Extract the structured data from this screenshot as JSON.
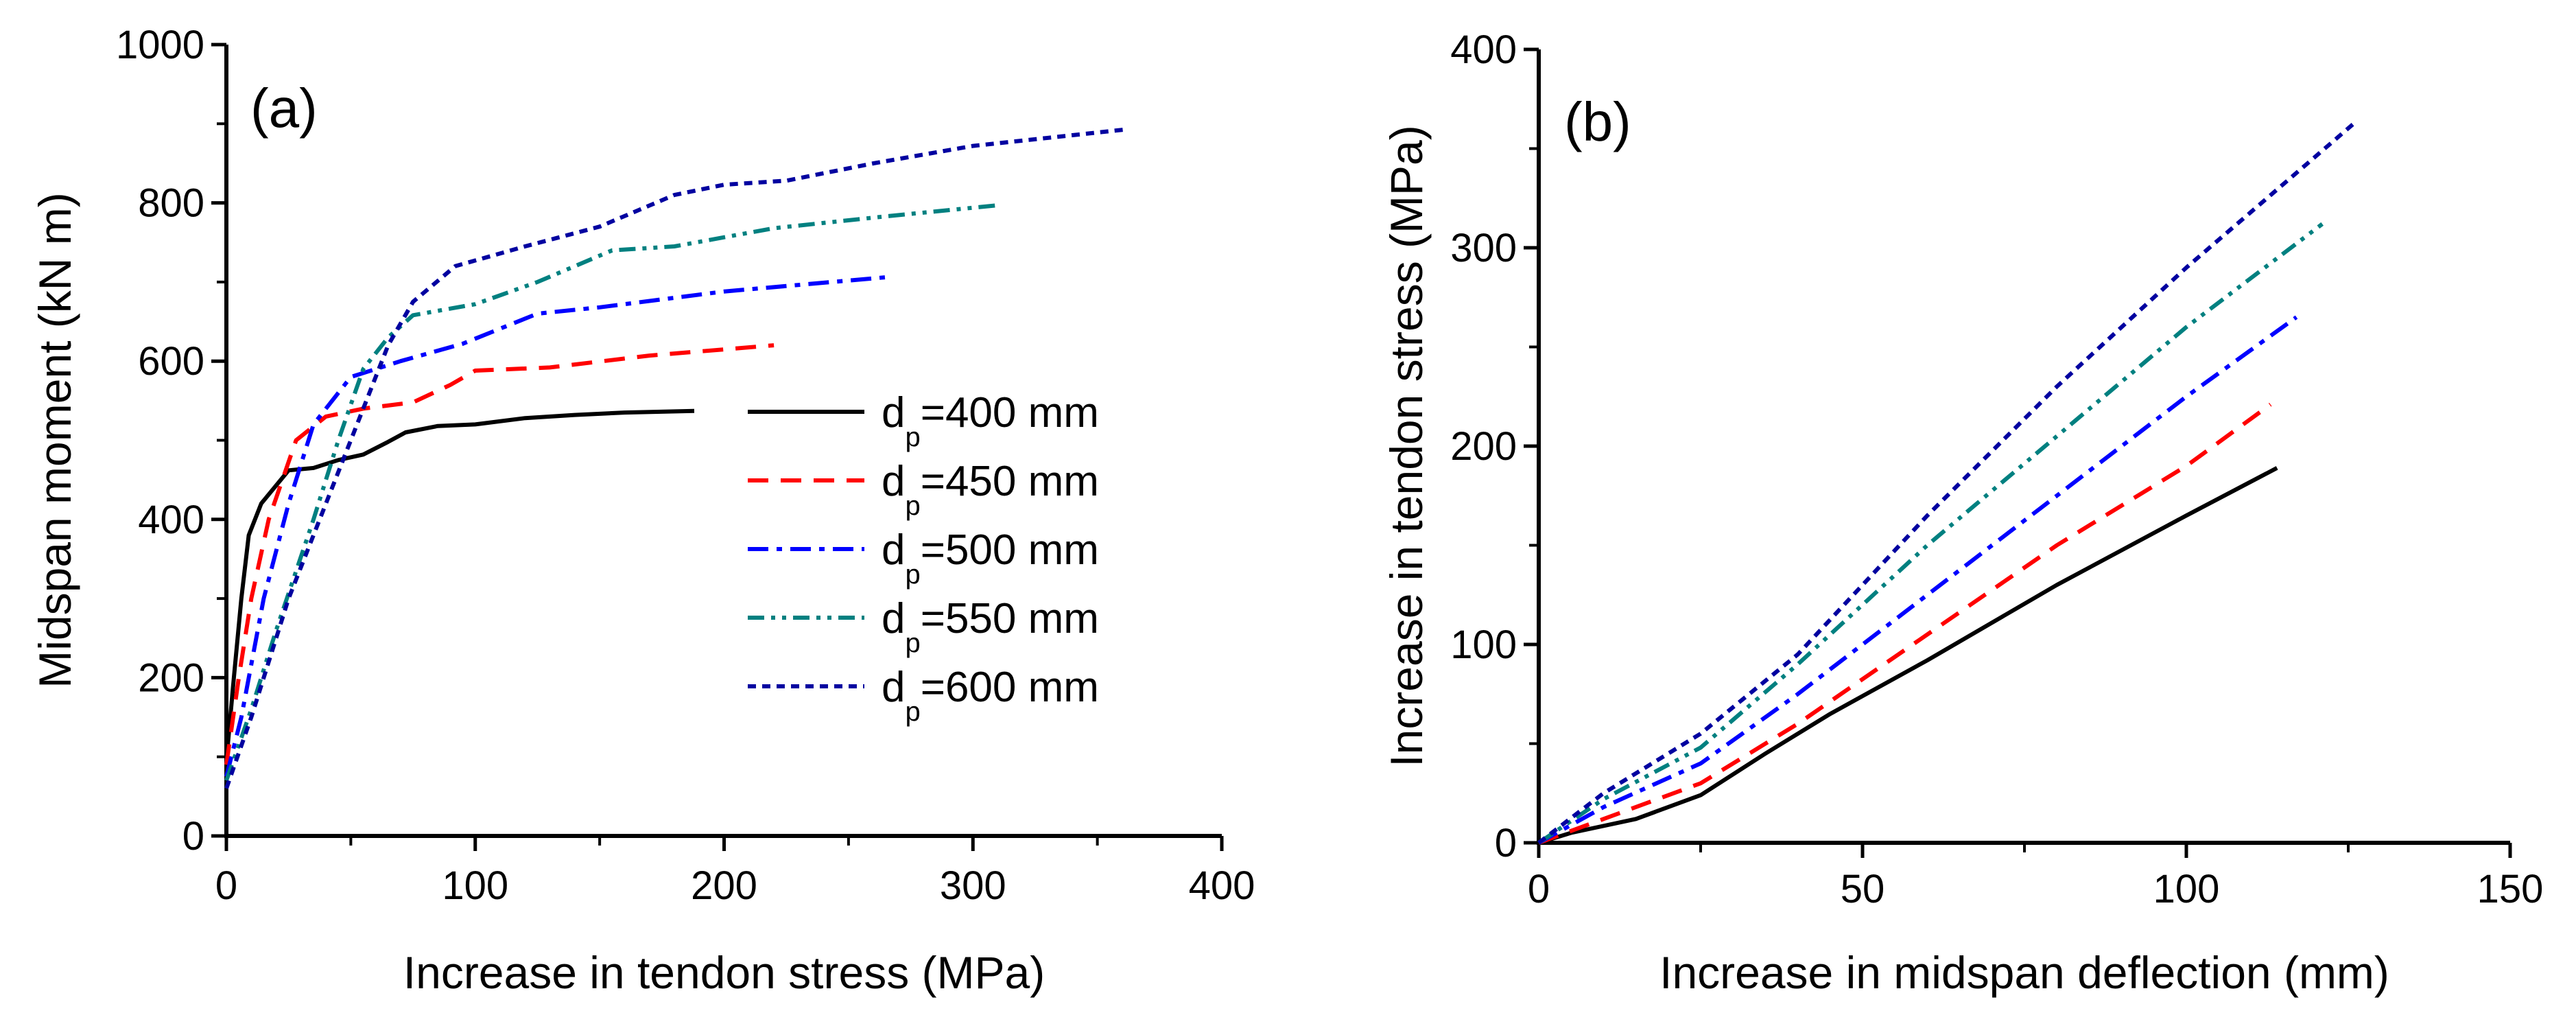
{
  "series_styles": [
    {
      "name": "dp=400 mm",
      "color": "#000000",
      "dash": "solid"
    },
    {
      "name": "dp=450 mm",
      "color": "#ff0000",
      "dash": "dash"
    },
    {
      "name": "dp=500 mm",
      "color": "#0000ff",
      "dash": "dash-dot"
    },
    {
      "name": "dp=550 mm",
      "color": "#008080",
      "dash": "dash-dot-dot"
    },
    {
      "name": "dp=600 mm",
      "color": "#0000a0",
      "dash": "short-dash"
    }
  ],
  "legend": [
    {
      "main": "d",
      "sub": "p",
      "rest": "=400 mm"
    },
    {
      "main": "d",
      "sub": "p",
      "rest": "=450 mm"
    },
    {
      "main": "d",
      "sub": "p",
      "rest": "=500 mm"
    },
    {
      "main": "d",
      "sub": "p",
      "rest": "=550 mm"
    },
    {
      "main": "d",
      "sub": "p",
      "rest": "=600 mm"
    }
  ],
  "chart_data": [
    {
      "type": "line",
      "panel_label": "(a)",
      "xlabel": "Increase in tendon stress (MPa)",
      "ylabel": "Midspan moment (kN m)",
      "xlim": [
        0,
        400
      ],
      "ylim": [
        0,
        1000
      ],
      "xticks": [
        0,
        100,
        200,
        300,
        400
      ],
      "yticks": [
        0,
        200,
        400,
        600,
        800,
        1000
      ],
      "legend_position": "center-right",
      "grid": false,
      "series": [
        {
          "name": "dp=400 mm",
          "points": [
            [
              0,
              95
            ],
            [
              3,
              200
            ],
            [
              6,
              300
            ],
            [
              9,
              380
            ],
            [
              14,
              420
            ],
            [
              25,
              462
            ],
            [
              35,
              465
            ],
            [
              45,
              475
            ],
            [
              55,
              482
            ],
            [
              65,
              498
            ],
            [
              72,
              510
            ],
            [
              85,
              518
            ],
            [
              100,
              520
            ],
            [
              120,
              528
            ],
            [
              140,
              532
            ],
            [
              160,
              535
            ],
            [
              188,
              537
            ]
          ]
        },
        {
          "name": "dp=450 mm",
          "points": [
            [
              0,
              90
            ],
            [
              5,
              200
            ],
            [
              10,
              300
            ],
            [
              17,
              400
            ],
            [
              28,
              500
            ],
            [
              40,
              530
            ],
            [
              55,
              540
            ],
            [
              75,
              548
            ],
            [
              90,
              570
            ],
            [
              100,
              588
            ],
            [
              130,
              592
            ],
            [
              170,
              607
            ],
            [
              220,
              620
            ]
          ]
        },
        {
          "name": "dp=500 mm",
          "points": [
            [
              0,
              75
            ],
            [
              6,
              150
            ],
            [
              15,
              300
            ],
            [
              25,
              420
            ],
            [
              35,
              520
            ],
            [
              50,
              580
            ],
            [
              70,
              600
            ],
            [
              95,
              622
            ],
            [
              125,
              660
            ],
            [
              150,
              668
            ],
            [
              200,
              688
            ],
            [
              265,
              706
            ]
          ]
        },
        {
          "name": "dp=550 mm",
          "points": [
            [
              0,
              70
            ],
            [
              10,
              160
            ],
            [
              20,
              260
            ],
            [
              35,
              400
            ],
            [
              45,
              500
            ],
            [
              55,
              590
            ],
            [
              65,
              630
            ],
            [
              75,
              658
            ],
            [
              100,
              672
            ],
            [
              125,
              700
            ],
            [
              155,
              740
            ],
            [
              180,
              745
            ],
            [
              220,
              768
            ],
            [
              265,
              783
            ],
            [
              310,
              797
            ]
          ]
        },
        {
          "name": "dp=600 mm",
          "points": [
            [
              0,
              60
            ],
            [
              10,
              150
            ],
            [
              25,
              300
            ],
            [
              40,
              420
            ],
            [
              55,
              540
            ],
            [
              65,
              620
            ],
            [
              75,
              675
            ],
            [
              92,
              720
            ],
            [
              120,
              745
            ],
            [
              150,
              770
            ],
            [
              180,
              810
            ],
            [
              200,
              823
            ],
            [
              225,
              828
            ],
            [
              260,
              850
            ],
            [
              300,
              872
            ],
            [
              362,
              893
            ]
          ]
        }
      ]
    },
    {
      "type": "line",
      "panel_label": "(b)",
      "xlabel": "Increase in midspan deflection (mm)",
      "ylabel": "Increase in tendon stress (MPa)",
      "xlim": [
        0,
        150
      ],
      "ylim": [
        0,
        400
      ],
      "xticks": [
        0,
        50,
        100,
        150
      ],
      "yticks": [
        0,
        100,
        200,
        300,
        400
      ],
      "grid": false,
      "series": [
        {
          "name": "dp=400 mm",
          "points": [
            [
              0,
              0
            ],
            [
              5,
              5
            ],
            [
              15,
              12
            ],
            [
              25,
              24
            ],
            [
              35,
              45
            ],
            [
              45,
              65
            ],
            [
              60,
              92
            ],
            [
              80,
              130
            ],
            [
              100,
              165
            ],
            [
              114,
              189
            ]
          ]
        },
        {
          "name": "dp=450 mm",
          "points": [
            [
              0,
              0
            ],
            [
              10,
              12
            ],
            [
              25,
              30
            ],
            [
              40,
              60
            ],
            [
              60,
              105
            ],
            [
              80,
              150
            ],
            [
              100,
              190
            ],
            [
              113,
              221
            ]
          ]
        },
        {
          "name": "dp=500 mm",
          "points": [
            [
              0,
              0
            ],
            [
              10,
              18
            ],
            [
              25,
              40
            ],
            [
              40,
              75
            ],
            [
              60,
              125
            ],
            [
              80,
              175
            ],
            [
              100,
              225
            ],
            [
              117,
              265
            ]
          ]
        },
        {
          "name": "dp=550 mm",
          "points": [
            [
              0,
              0
            ],
            [
              10,
              22
            ],
            [
              25,
              48
            ],
            [
              40,
              90
            ],
            [
              60,
              150
            ],
            [
              80,
              205
            ],
            [
              100,
              260
            ],
            [
              121,
              312
            ]
          ]
        },
        {
          "name": "dp=600 mm",
          "points": [
            [
              0,
              0
            ],
            [
              10,
              25
            ],
            [
              25,
              55
            ],
            [
              40,
              95
            ],
            [
              60,
              165
            ],
            [
              80,
              230
            ],
            [
              100,
              290
            ],
            [
              126,
              363
            ]
          ]
        }
      ]
    }
  ]
}
